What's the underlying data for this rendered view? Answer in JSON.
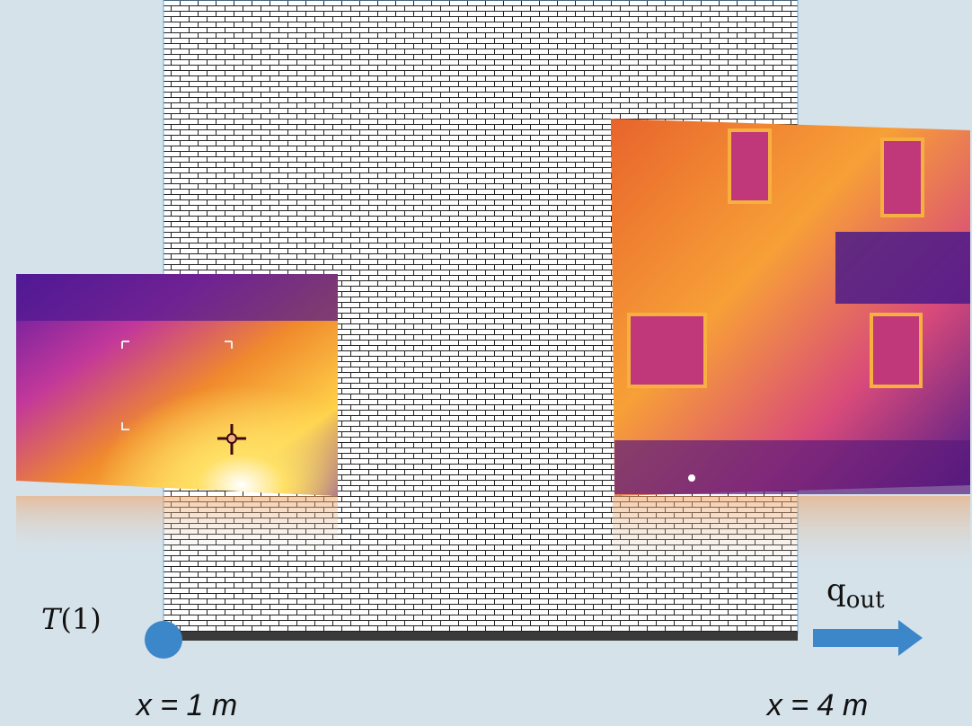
{
  "labels": {
    "temperature_symbol": "T",
    "temperature_argument": "(1)",
    "flux_symbol": "q",
    "flux_subscript": "out",
    "x_start": "x = 1 m",
    "x_end": "x = 4 m"
  }
}
